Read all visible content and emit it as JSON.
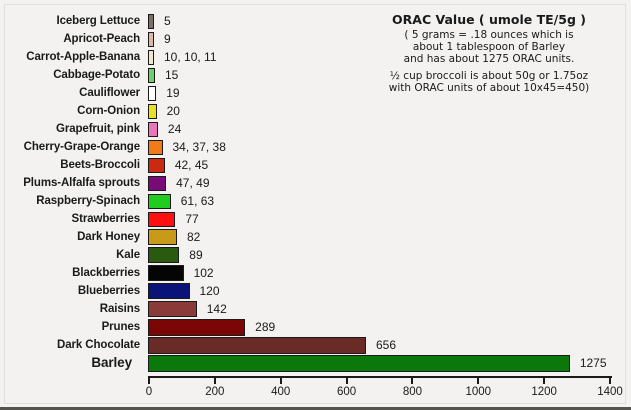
{
  "chart_data": {
    "type": "bar",
    "orientation": "horizontal",
    "title": "ORAC Value ( umole TE/5g )",
    "annotations": [
      "( 5 grams = .18 ounces which is",
      "about 1 tablespoon of Barley",
      "and has about 1275 ORAC units.",
      "½ cup broccoli is about 50g or 1.75oz",
      "with ORAC units of about 10x45=450)"
    ],
    "xlabel": "",
    "ylabel": "",
    "xlim": [
      0,
      1400
    ],
    "xticks": [
      0,
      200,
      400,
      600,
      800,
      1000,
      1200,
      1400
    ],
    "grid": false,
    "legend": "none",
    "categories": [
      "Iceberg Lettuce",
      "Apricot-Peach",
      "Carrot-Apple-Banana",
      "Cabbage-Potato",
      "Cauliflower",
      "Corn-Onion",
      "Grapefruit, pink",
      "Cherry-Grape-Orange",
      "Beets-Broccoli",
      "Plums-Alfalfa sprouts",
      "Raspberry-Spinach",
      "Strawberries",
      "Dark Honey",
      "Kale",
      "Blackberries",
      "Blueberries",
      "Raisins",
      "Prunes",
      "Dark Chocolate",
      "Barley"
    ],
    "values": [
      5,
      9,
      11,
      15,
      19,
      20,
      24,
      38,
      45,
      49,
      63,
      77,
      82,
      89,
      102,
      120,
      142,
      289,
      656,
      1275
    ],
    "value_labels": [
      "5",
      "9",
      "10, 10, 11",
      "15",
      "19",
      "20",
      "24",
      "34, 37, 38",
      "42, 45",
      "47, 49",
      "61, 63",
      "77",
      "82",
      "89",
      "102",
      "120",
      "142",
      "289",
      "656",
      "1275"
    ],
    "bar_colors": [
      "#7a6f6a",
      "#d9b8a8",
      "#efe6cc",
      "#6fcf6f",
      "#ffffff",
      "#e8e020",
      "#e878b8",
      "#f07b18",
      "#cc2a10",
      "#7a0a78",
      "#20cc20",
      "#ff1010",
      "#c89a18",
      "#2a5a10",
      "#050505",
      "#0a1478",
      "#8a3a38",
      "#7a0606",
      "#6a2a26",
      "#0a780a"
    ]
  }
}
